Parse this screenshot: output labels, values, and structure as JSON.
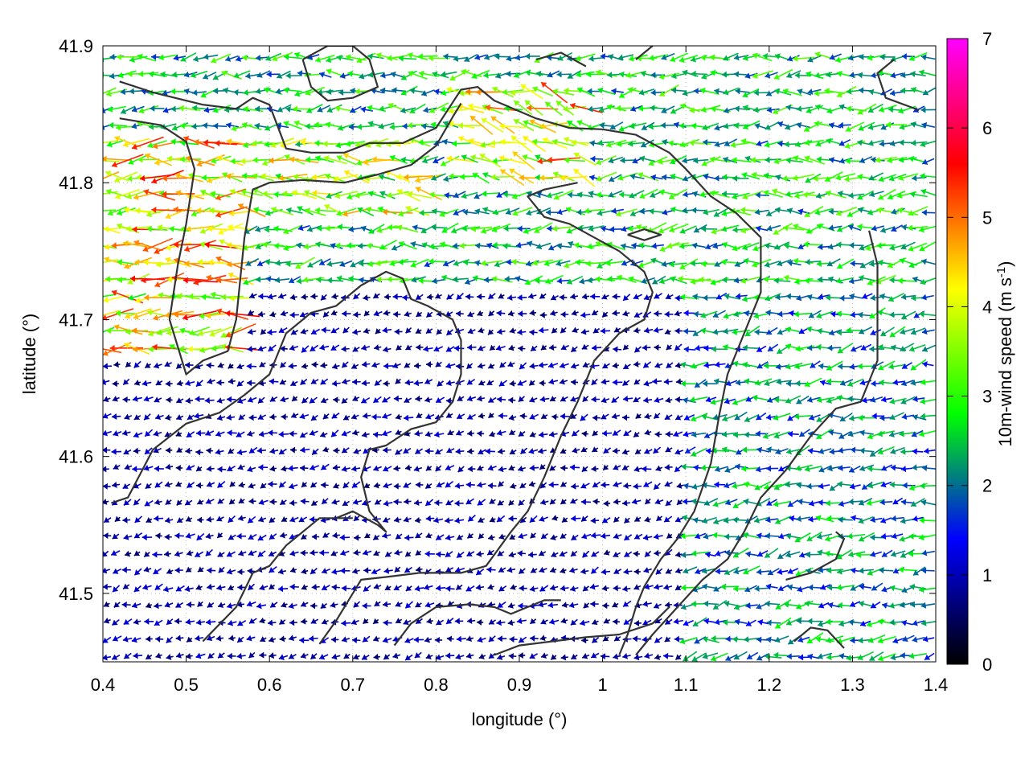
{
  "chart_data": {
    "type": "vector-field",
    "title": "",
    "xlabel": "longitude (°)",
    "ylabel": "latitude (°)",
    "xlim": [
      0.4,
      1.4
    ],
    "ylim": [
      41.45,
      41.9
    ],
    "xticks": [
      "0.4",
      "0.5",
      "0.6",
      "0.7",
      "0.8",
      "0.9",
      "1",
      "1.1",
      "1.2",
      "1.3",
      "1.4"
    ],
    "yticks": [
      "41.5",
      "41.6",
      "41.7",
      "41.8",
      "41.9"
    ],
    "grid": true,
    "colorbar": {
      "label": "10m-wind speed (m s-1)",
      "label_main": "10m-wind speed (m s",
      "label_sup": "-1",
      "label_close": ")",
      "range": [
        0,
        7
      ],
      "ticks": [
        "0",
        "1",
        "2",
        "3",
        "4",
        "5",
        "6",
        "7"
      ],
      "colors": [
        "#000000",
        "#0000ff",
        "#00ff00",
        "#ffff00",
        "#ff0000",
        "#ff00ff"
      ]
    },
    "wind_regions": [
      {
        "lon": [
          0.4,
          0.57
        ],
        "lat": [
          41.67,
          41.83
        ],
        "speed": 4.2,
        "dir_deg": 180
      },
      {
        "lon": [
          0.57,
          0.8
        ],
        "lat": [
          41.77,
          41.83
        ],
        "speed": 3.6,
        "dir_deg": 178
      },
      {
        "lon": [
          0.82,
          0.98
        ],
        "lat": [
          41.8,
          41.87
        ],
        "speed": 4.0,
        "dir_deg": 165
      },
      {
        "lon": [
          0.4,
          1.4
        ],
        "lat": [
          41.72,
          41.9
        ],
        "speed": 2.5,
        "dir_deg": 185
      },
      {
        "lon": [
          1.1,
          1.4
        ],
        "lat": [
          41.45,
          41.72
        ],
        "speed": 2.1,
        "dir_deg": 190
      },
      {
        "lon": [
          0.4,
          1.1
        ],
        "lat": [
          41.45,
          41.72
        ],
        "speed": 0.9,
        "dir_deg": 200
      }
    ],
    "contours": [
      [
        [
          0.42,
          41.874
        ],
        [
          0.46,
          41.866
        ],
        [
          0.52,
          41.857
        ],
        [
          0.56,
          41.854
        ],
        [
          0.58,
          41.862
        ],
        [
          0.6,
          41.857
        ],
        [
          0.62,
          41.825
        ],
        [
          0.65,
          41.822
        ],
        [
          0.69,
          41.822
        ],
        [
          0.72,
          41.829
        ],
        [
          0.76,
          41.829
        ],
        [
          0.8,
          41.84
        ],
        [
          0.83,
          41.868
        ],
        [
          0.85,
          41.87
        ],
        [
          0.87,
          41.86
        ],
        [
          0.92,
          41.847
        ],
        [
          0.96,
          41.84
        ],
        [
          1.0,
          41.839
        ],
        [
          1.04,
          41.835
        ],
        [
          1.08,
          41.822
        ],
        [
          1.1,
          41.81
        ],
        [
          1.13,
          41.79
        ],
        [
          1.16,
          41.778
        ],
        [
          1.19,
          41.76
        ],
        [
          1.19,
          41.72
        ],
        [
          1.17,
          41.69
        ],
        [
          1.15,
          41.66
        ],
        [
          1.14,
          41.63
        ],
        [
          1.13,
          41.595
        ],
        [
          1.11,
          41.56
        ],
        [
          1.09,
          41.54
        ],
        [
          1.07,
          41.525
        ],
        [
          1.05,
          41.505
        ],
        [
          1.04,
          41.49
        ],
        [
          1.03,
          41.47
        ],
        [
          1.02,
          41.455
        ]
      ],
      [
        [
          0.42,
          41.847
        ],
        [
          0.47,
          41.842
        ],
        [
          0.5,
          41.83
        ],
        [
          0.51,
          41.81
        ],
        [
          0.5,
          41.77
        ],
        [
          0.49,
          41.74
        ],
        [
          0.48,
          41.7
        ],
        [
          0.5,
          41.66
        ],
        [
          0.52,
          41.67
        ],
        [
          0.55,
          41.677
        ],
        [
          0.56,
          41.7
        ],
        [
          0.57,
          41.76
        ],
        [
          0.58,
          41.795
        ],
        [
          0.6,
          41.8
        ],
        [
          0.64,
          41.802
        ],
        [
          0.69,
          41.8
        ],
        [
          0.73,
          41.806
        ],
        [
          0.77,
          41.813
        ],
        [
          0.8,
          41.827
        ],
        [
          0.82,
          41.848
        ],
        [
          0.83,
          41.858
        ]
      ],
      [
        [
          0.41,
          41.566
        ],
        [
          0.43,
          41.57
        ],
        [
          0.46,
          41.605
        ],
        [
          0.5,
          41.624
        ],
        [
          0.54,
          41.632
        ],
        [
          0.57,
          41.645
        ],
        [
          0.6,
          41.66
        ],
        [
          0.62,
          41.69
        ],
        [
          0.65,
          41.705
        ],
        [
          0.68,
          41.71
        ],
        [
          0.71,
          41.725
        ],
        [
          0.74,
          41.735
        ],
        [
          0.76,
          41.73
        ],
        [
          0.77,
          41.715
        ],
        [
          0.79,
          41.71
        ],
        [
          0.82,
          41.7
        ],
        [
          0.83,
          41.685
        ],
        [
          0.83,
          41.66
        ],
        [
          0.82,
          41.64
        ],
        [
          0.8,
          41.625
        ],
        [
          0.77,
          41.62
        ],
        [
          0.74,
          41.608
        ],
        [
          0.72,
          41.605
        ],
        [
          0.71,
          41.585
        ],
        [
          0.72,
          41.56
        ],
        [
          0.74,
          41.545
        ],
        [
          0.73,
          41.55
        ],
        [
          0.7,
          41.56
        ],
        [
          0.68,
          41.555
        ]
      ],
      [
        [
          0.52,
          41.465
        ],
        [
          0.56,
          41.49
        ],
        [
          0.58,
          41.515
        ],
        [
          0.6,
          41.52
        ],
        [
          0.62,
          41.535
        ],
        [
          0.66,
          41.555
        ],
        [
          0.68,
          41.555
        ],
        [
          0.7,
          41.555
        ]
      ],
      [
        [
          0.66,
          41.463
        ],
        [
          0.68,
          41.48
        ],
        [
          0.71,
          41.51
        ],
        [
          0.74,
          41.512
        ],
        [
          0.78,
          41.515
        ],
        [
          0.83,
          41.515
        ],
        [
          0.86,
          41.52
        ],
        [
          0.89,
          41.545
        ],
        [
          0.91,
          41.56
        ],
        [
          0.93,
          41.585
        ],
        [
          0.95,
          41.615
        ],
        [
          0.97,
          41.64
        ],
        [
          0.99,
          41.67
        ],
        [
          1.02,
          41.69
        ],
        [
          1.05,
          41.7
        ],
        [
          1.06,
          41.72
        ],
        [
          1.05,
          41.735
        ],
        [
          1.02,
          41.75
        ],
        [
          0.99,
          41.76
        ],
        [
          0.96,
          41.77
        ],
        [
          0.93,
          41.775
        ],
        [
          0.91,
          41.79
        ],
        [
          0.93,
          41.795
        ],
        [
          0.97,
          41.8
        ]
      ],
      [
        [
          0.75,
          41.462
        ],
        [
          0.77,
          41.478
        ],
        [
          0.8,
          41.49
        ],
        [
          0.84,
          41.492
        ],
        [
          0.87,
          41.49
        ],
        [
          0.89,
          41.485
        ],
        [
          0.91,
          41.49
        ],
        [
          0.93,
          41.495
        ],
        [
          0.95,
          41.495
        ]
      ],
      [
        [
          0.87,
          41.455
        ],
        [
          0.9,
          41.462
        ],
        [
          0.94,
          41.465
        ],
        [
          0.98,
          41.468
        ],
        [
          1.02,
          41.47
        ],
        [
          1.06,
          41.478
        ],
        [
          1.08,
          41.49
        ]
      ],
      [
        [
          1.38,
          41.853
        ],
        [
          1.34,
          41.862
        ],
        [
          1.33,
          41.88
        ],
        [
          1.35,
          41.89
        ]
      ],
      [
        [
          1.32,
          41.765
        ],
        [
          1.33,
          41.74
        ],
        [
          1.33,
          41.7
        ],
        [
          1.33,
          41.67
        ],
        [
          1.31,
          41.64
        ],
        [
          1.28,
          41.635
        ],
        [
          1.25,
          41.615
        ],
        [
          1.22,
          41.59
        ],
        [
          1.19,
          41.57
        ],
        [
          1.17,
          41.545
        ],
        [
          1.15,
          41.525
        ],
        [
          1.12,
          41.51
        ],
        [
          1.09,
          41.49
        ],
        [
          1.06,
          41.47
        ],
        [
          1.04,
          41.455
        ]
      ],
      [
        [
          1.23,
          41.465
        ],
        [
          1.25,
          41.475
        ],
        [
          1.27,
          41.473
        ],
        [
          1.29,
          41.46
        ]
      ],
      [
        [
          1.22,
          41.51
        ],
        [
          1.25,
          41.515
        ],
        [
          1.28,
          41.525
        ],
        [
          1.29,
          41.54
        ],
        [
          1.28,
          41.545
        ]
      ],
      [
        [
          0.64,
          41.89
        ],
        [
          0.67,
          41.9
        ],
        [
          0.7,
          41.9
        ],
        [
          0.72,
          41.89
        ],
        [
          0.73,
          41.87
        ],
        [
          0.7,
          41.862
        ],
        [
          0.67,
          41.86
        ],
        [
          0.65,
          41.87
        ],
        [
          0.64,
          41.89
        ]
      ],
      [
        [
          1.03,
          41.762
        ],
        [
          1.05,
          41.766
        ],
        [
          1.07,
          41.762
        ],
        [
          1.05,
          41.758
        ],
        [
          1.03,
          41.762
        ]
      ],
      [
        [
          0.92,
          41.89
        ],
        [
          0.95,
          41.895
        ],
        [
          0.98,
          41.885
        ]
      ],
      [
        [
          1.04,
          41.89
        ],
        [
          1.06,
          41.9
        ]
      ]
    ]
  }
}
